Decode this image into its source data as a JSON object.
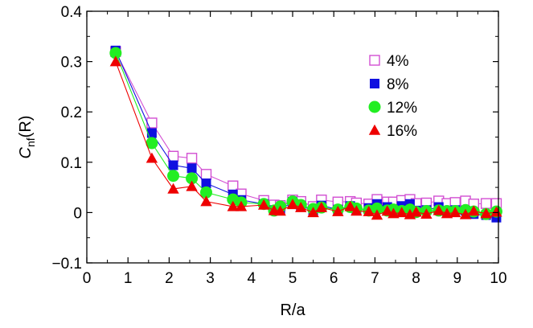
{
  "chart_data": {
    "type": "line",
    "xlabel": "R/a",
    "ylabel_main": "C",
    "ylabel_sub": "nf",
    "ylabel_tail": "(R)",
    "xlim": [
      0,
      10
    ],
    "ylim": [
      -0.1,
      0.4
    ],
    "xticks": [
      0,
      1,
      2,
      3,
      4,
      5,
      6,
      7,
      8,
      9,
      10
    ],
    "xtick_labels": [
      "0",
      "1",
      "2",
      "3",
      "4",
      "5",
      "6",
      "7",
      "8",
      "9",
      "10"
    ],
    "yticks": [
      -0.1,
      0,
      0.1,
      0.2,
      0.3,
      0.4
    ],
    "ytick_labels": [
      "−0.1",
      "0",
      "0.1",
      "0.2",
      "0.3",
      "0.4"
    ],
    "grid": false,
    "legend_position": "top-right",
    "series": [
      {
        "name": "4%",
        "color": "#d24fd2",
        "marker": "open-square",
        "x": [
          0.7,
          1.58,
          2.1,
          2.55,
          2.9,
          3.55,
          3.75,
          4.3,
          4.55,
          4.7,
          5.0,
          5.2,
          5.5,
          5.7,
          6.1,
          6.4,
          6.55,
          6.85,
          7.05,
          7.3,
          7.45,
          7.65,
          7.85,
          8.0,
          8.25,
          8.55,
          8.75,
          8.95,
          9.2,
          9.4,
          9.7,
          9.95
        ],
        "y": [
          0.32,
          0.178,
          0.112,
          0.108,
          0.076,
          0.053,
          0.037,
          0.024,
          0.015,
          0.014,
          0.025,
          0.022,
          0.012,
          0.025,
          0.021,
          0.022,
          0.019,
          0.017,
          0.026,
          0.021,
          0.021,
          0.024,
          0.026,
          0.018,
          0.019,
          0.023,
          0.018,
          0.02,
          0.023,
          0.017,
          0.018,
          0.018
        ]
      },
      {
        "name": "8%",
        "color": "#1010e0",
        "marker": "filled-square",
        "x": [
          0.7,
          1.58,
          2.1,
          2.55,
          2.9,
          3.55,
          3.75,
          4.3,
          4.55,
          4.7,
          5.0,
          5.2,
          5.5,
          5.7,
          6.1,
          6.4,
          6.55,
          6.85,
          7.05,
          7.3,
          7.45,
          7.65,
          7.85,
          8.0,
          8.25,
          8.55,
          8.75,
          8.95,
          9.2,
          9.4,
          9.7,
          9.95
        ],
        "y": [
          0.322,
          0.158,
          0.094,
          0.088,
          0.058,
          0.036,
          0.025,
          0.017,
          0.005,
          0.006,
          0.021,
          0.014,
          0.003,
          0.014,
          0.006,
          0.013,
          0.004,
          0.009,
          0.017,
          0.011,
          0.007,
          0.013,
          0.017,
          0.004,
          0.005,
          0.011,
          0.003,
          0.005,
          0.004,
          -0.003,
          -0.005,
          -0.01
        ]
      },
      {
        "name": "12%",
        "color": "#22ee22",
        "marker": "filled-circle",
        "x": [
          0.7,
          1.58,
          2.1,
          2.55,
          2.9,
          3.55,
          3.75,
          4.3,
          4.55,
          4.7,
          5.0,
          5.2,
          5.5,
          5.7,
          6.1,
          6.4,
          6.55,
          6.85,
          7.05,
          7.3,
          7.45,
          7.65,
          7.85,
          8.0,
          8.25,
          8.55,
          8.75,
          8.95,
          9.2,
          9.4,
          9.7,
          9.95
        ],
        "y": [
          0.317,
          0.138,
          0.073,
          0.068,
          0.04,
          0.026,
          0.02,
          0.017,
          0.004,
          0.012,
          0.022,
          0.015,
          0.007,
          0.01,
          0.006,
          0.011,
          0.008,
          0.004,
          0.008,
          0.004,
          0.006,
          0.003,
          0.006,
          0.001,
          0.003,
          0.004,
          0.003,
          0.003,
          0.005,
          0.002,
          -0.003,
          0.002
        ]
      },
      {
        "name": "16%",
        "color": "#ee0000",
        "marker": "filled-triangle",
        "x": [
          0.7,
          1.58,
          2.1,
          2.55,
          2.9,
          3.55,
          3.75,
          4.3,
          4.55,
          4.7,
          5.0,
          5.2,
          5.5,
          5.7,
          6.1,
          6.4,
          6.55,
          6.85,
          7.05,
          7.3,
          7.45,
          7.65,
          7.85,
          8.0,
          8.25,
          8.55,
          8.75,
          8.95,
          9.2,
          9.4,
          9.7,
          9.95
        ],
        "y": [
          0.3,
          0.108,
          0.047,
          0.052,
          0.022,
          0.012,
          0.012,
          0.015,
          0.004,
          0.003,
          0.016,
          0.01,
          0.0,
          0.01,
          0.002,
          0.012,
          0.003,
          0.002,
          -0.005,
          0.003,
          -0.002,
          0.0,
          -0.004,
          0.001,
          -0.003,
          0.004,
          -0.002,
          0.0,
          -0.004,
          0.003,
          -0.002,
          0.001
        ]
      }
    ]
  }
}
